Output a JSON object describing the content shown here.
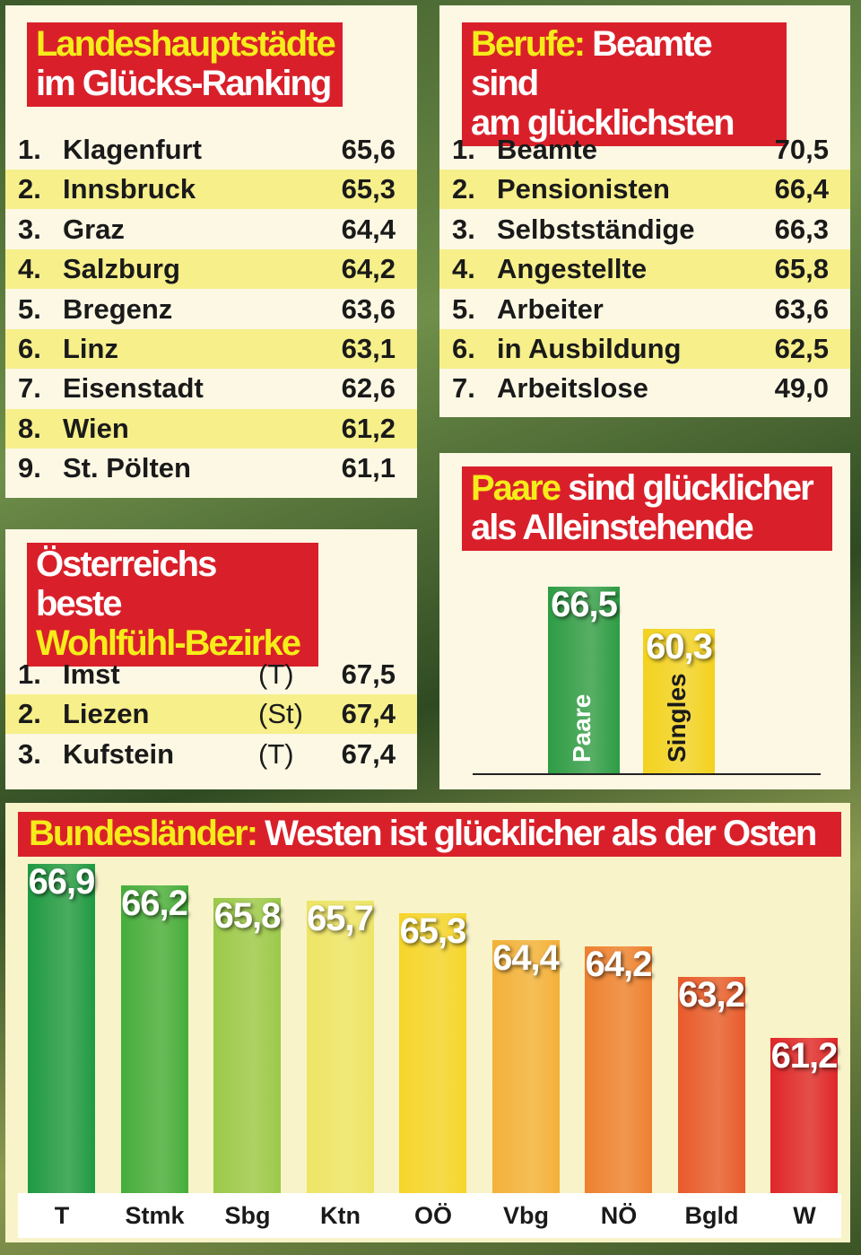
{
  "cities": {
    "title_line1": "Landeshauptstädte",
    "title_line2": "im Glücks-Ranking",
    "rows": [
      {
        "rank": "1.",
        "name": "Klagenfurt",
        "value": "65,6"
      },
      {
        "rank": "2.",
        "name": "Innsbruck",
        "value": "65,3"
      },
      {
        "rank": "3.",
        "name": "Graz",
        "value": "64,4"
      },
      {
        "rank": "4.",
        "name": "Salzburg",
        "value": "64,2"
      },
      {
        "rank": "5.",
        "name": "Bregenz",
        "value": "63,6"
      },
      {
        "rank": "6.",
        "name": "Linz",
        "value": "63,1"
      },
      {
        "rank": "7.",
        "name": "Eisenstadt",
        "value": "62,6"
      },
      {
        "rank": "8.",
        "name": "Wien",
        "value": "61,2"
      },
      {
        "rank": "9.",
        "name": "St. Pölten",
        "value": "61,1"
      }
    ]
  },
  "professions": {
    "title_highlight": "Berufe:",
    "title_rest": "Beamte sind",
    "title_line2": "am glücklichsten",
    "rows": [
      {
        "rank": "1.",
        "name": "Beamte",
        "value": "70,5"
      },
      {
        "rank": "2.",
        "name": "Pensionisten",
        "value": "66,4"
      },
      {
        "rank": "3.",
        "name": "Selbstständige",
        "value": "66,3"
      },
      {
        "rank": "4.",
        "name": "Angestellte",
        "value": "65,8"
      },
      {
        "rank": "5.",
        "name": "Arbeiter",
        "value": "63,6"
      },
      {
        "rank": "6.",
        "name": "in Ausbildung",
        "value": "62,5"
      },
      {
        "rank": "7.",
        "name": "Arbeitslose",
        "value": "49,0"
      }
    ]
  },
  "districts": {
    "title_line1": "Österreichs beste",
    "title_line2": "Wohlfühl-Bezirke",
    "rows": [
      {
        "rank": "1.",
        "name": "Imst",
        "state": "(T)",
        "value": "67,5"
      },
      {
        "rank": "2.",
        "name": "Liezen",
        "state": "(St)",
        "value": "67,4"
      },
      {
        "rank": "3.",
        "name": "Kufstein",
        "state": "(T)",
        "value": "67,4"
      }
    ]
  },
  "chart_data": [
    {
      "type": "bar",
      "title_highlight": "Paare",
      "title_rest": "sind glücklicher",
      "title_line2": "als Alleinstehende",
      "categories": [
        "Paare",
        "Singles"
      ],
      "values": [
        66.5,
        60.3
      ],
      "labels": [
        "66,5",
        "60,3"
      ],
      "colors": [
        "#2e9c45",
        "#f3d21e"
      ],
      "ylim": [
        39,
        70
      ]
    },
    {
      "type": "bar",
      "title_highlight": "Bundesländer:",
      "title_rest": "Westen ist glücklicher als der Osten",
      "categories": [
        "T",
        "Stmk",
        "Sbg",
        "Ktn",
        "OÖ",
        "Vbg",
        "NÖ",
        "Bgld",
        "W"
      ],
      "values": [
        66.9,
        66.2,
        65.8,
        65.7,
        65.3,
        64.4,
        64.2,
        63.2,
        61.2
      ],
      "labels": [
        "66,9",
        "66,2",
        "65,8",
        "65,7",
        "65,3",
        "64,4",
        "64,2",
        "63,2",
        "61,2"
      ],
      "colors": [
        "#1f9a44",
        "#46ad3c",
        "#9bc94a",
        "#eee566",
        "#f6d52a",
        "#f4b13a",
        "#ee8030",
        "#e85a2c",
        "#e0262a"
      ],
      "ylim": [
        56.1,
        67
      ]
    }
  ]
}
